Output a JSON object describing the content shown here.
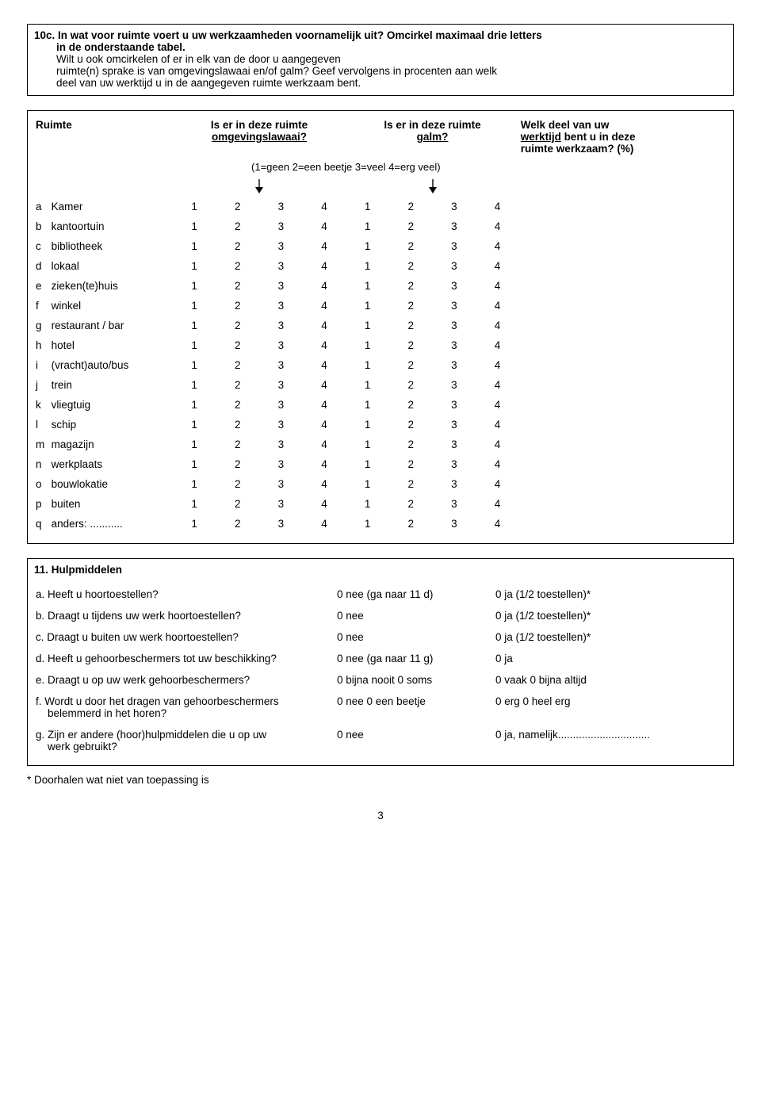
{
  "q10c": {
    "num": "10c.",
    "line1": "In wat voor ruimte voert u uw werkzaamheden voornamelijk uit? Omcirkel maximaal drie letters",
    "line2": "in de onderstaande tabel.",
    "line3": "Wilt u ook omcirkelen of er in elk van de door u aangegeven",
    "line4": "ruimte(n) sprake is van omgevingslawaai en/of galm? Geef vervolgens in procenten aan welk",
    "line5": "deel van uw werktijd u in de aangegeven ruimte werkzaam bent."
  },
  "hdr": {
    "ruimte": "Ruimte",
    "lawaai_a": "Is er in deze ruimte",
    "lawaai_b": "omgevingslawaai?",
    "galm_a": "Is er in deze ruimte",
    "galm_b": "galm?",
    "deel_a": "Welk deel van uw",
    "deel_b": "werktijd",
    "deel_c": " bent u in deze",
    "deel_d": "ruimte werkzaam? (%)",
    "scale": "(1=geen 2=een beetje 3=veel 4=erg veel)"
  },
  "rows": [
    {
      "l": "a",
      "label": "Kamer"
    },
    {
      "l": "b",
      "label": "kantoortuin"
    },
    {
      "l": "c",
      "label": "bibliotheek"
    },
    {
      "l": "d",
      "label": "lokaal"
    },
    {
      "l": "e",
      "label": "zieken(te)huis"
    },
    {
      "l": "f",
      "label": "winkel"
    },
    {
      "l": "g",
      "label": "restaurant / bar"
    },
    {
      "l": "h",
      "label": "hotel"
    },
    {
      "l": "i",
      "label": "(vracht)auto/bus"
    },
    {
      "l": "j",
      "label": "trein"
    },
    {
      "l": "k",
      "label": "vliegtuig"
    },
    {
      "l": "l",
      "label": "schip"
    },
    {
      "l": "m",
      "label": "magazijn"
    },
    {
      "l": "n",
      "label": "werkplaats"
    },
    {
      "l": "o",
      "label": "bouwlokatie"
    },
    {
      "l": "p",
      "label": "buiten"
    },
    {
      "l": "q",
      "label": "anders: ..........."
    }
  ],
  "nums": {
    "n1": "1",
    "n2": "2",
    "n3": "3",
    "n4": "4"
  },
  "q11": {
    "title": "11. Hulpmiddelen",
    "items": [
      {
        "q": "a. Heeft u hoortoestellen?",
        "a1": "0 nee (ga naar 11 d)",
        "a2": "0 ja (1/2 toestellen)*"
      },
      {
        "q": "b. Draagt u tijdens uw werk hoortoestellen?",
        "a1": "0 nee",
        "a2": "0 ja (1/2 toestellen)*"
      },
      {
        "q": "c. Draagt u buiten uw werk hoortoestellen?",
        "a1": "0 nee",
        "a2": "0 ja (1/2 toestellen)*"
      },
      {
        "q": "d. Heeft u gehoorbeschermers tot uw beschikking?",
        "a1": "0 nee  (ga naar 11 g)",
        "a2": "0 ja"
      },
      {
        "q": "e. Draagt u op uw werk gehoorbeschermers?",
        "a1": "0 bijna nooit   0 soms",
        "a2": "0 vaak   0 bijna altijd"
      },
      {
        "q": "f. Wordt u door het dragen van gehoorbeschermers\n    belemmerd in het horen?",
        "a1": "0 nee          0 een beetje",
        "a2": "0 erg   0 heel erg"
      },
      {
        "q": "g. Zijn er andere (hoor)hulpmiddelen die u op uw\n    werk gebruikt?",
        "a1": "0 nee",
        "a2": "0 ja, namelijk..............................."
      }
    ]
  },
  "footnote": "* Doorhalen wat niet van toepassing is",
  "pagenum": "3"
}
